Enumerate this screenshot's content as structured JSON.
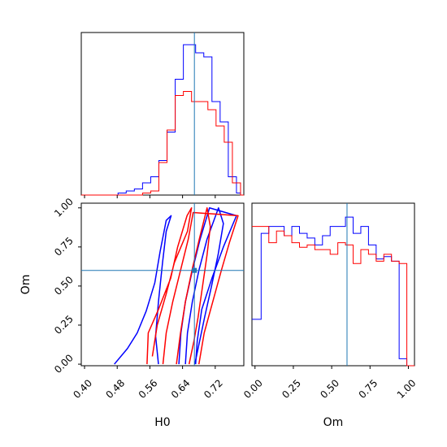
{
  "chart_data": {
    "type": "corner",
    "parameters": [
      "H0",
      "Om"
    ],
    "colors": {
      "run_blue": "#0000ff",
      "run_red": "#ff0000",
      "truth": "#1f77b4"
    },
    "truth": {
      "H0": 0.669,
      "Om": 0.6
    },
    "panels": [
      {
        "id": "hist_H0",
        "type": "step-histogram",
        "x_param": "H0",
        "xlim": [
          0.392,
          0.79
        ],
        "bins": [
          0.392,
          0.402,
          0.412,
          0.422,
          0.432,
          0.442,
          0.452,
          0.462,
          0.472,
          0.482,
          0.492,
          0.502,
          0.512,
          0.522,
          0.532,
          0.542,
          0.552,
          0.562,
          0.572,
          0.582,
          0.592,
          0.602,
          0.612,
          0.622,
          0.632,
          0.642,
          0.652,
          0.662,
          0.672,
          0.682,
          0.692,
          0.702,
          0.712,
          0.722,
          0.732,
          0.742,
          0.752,
          0.762,
          0.772,
          0.782,
          0.79
        ],
        "series": [
          {
            "color": "run_blue",
            "counts": [
              0,
              0,
              0,
              0,
              0,
              0,
              0,
              0,
              0,
              1,
              1,
              2,
              2,
              3,
              3,
              6,
              6,
              9,
              9,
              17,
              17,
              31,
              31,
              57,
              57,
              74,
              74,
              74,
              70,
              70,
              68,
              68,
              46,
              46,
              36,
              36,
              9,
              9,
              1,
              0
            ]
          },
          {
            "color": "run_red",
            "counts": [
              0,
              0,
              0,
              0,
              0,
              0,
              0,
              0,
              0,
              0,
              0,
              0,
              0,
              0,
              0,
              1,
              1,
              2,
              2,
              16,
              16,
              32,
              32,
              49,
              49,
              51,
              51,
              46,
              46,
              46,
              46,
              42,
              42,
              34,
              34,
              26,
              26,
              6,
              6,
              0
            ]
          }
        ],
        "ylim": [
          0,
          80
        ],
        "yticks_visible": false
      },
      {
        "id": "contour_H0_Om",
        "type": "contour",
        "x_param": "H0",
        "y_param": "Om",
        "xlim": [
          0.392,
          0.79
        ],
        "ylim": [
          -0.01,
          1.03
        ],
        "xticks": [
          "0.40",
          "0.48",
          "0.56",
          "0.64",
          "0.72"
        ],
        "yticks": [
          "0.00",
          "0.25",
          "0.50",
          "0.75",
          "1.00"
        ],
        "xlabel": "H0",
        "ylabel": "Om",
        "series": [
          {
            "color": "run_blue",
            "contours": [
              [
                [
                  0.581,
                  0.0
                ],
                [
                  0.574,
                  0.18
                ],
                [
                  0.581,
                  0.4
                ],
                [
                  0.591,
                  0.65
                ],
                [
                  0.6,
                  0.85
                ],
                [
                  0.612,
                  0.95
                ],
                [
                  0.6,
                  0.92
                ],
                [
                  0.585,
                  0.72
                ],
                [
                  0.572,
                  0.52
                ],
                [
                  0.551,
                  0.34
                ],
                [
                  0.529,
                  0.2
                ],
                [
                  0.505,
                  0.1
                ],
                [
                  0.473,
                  0.0
                ]
              ],
              [
                [
                  0.647,
                  0.0
                ],
                [
                  0.652,
                  0.2
                ],
                [
                  0.664,
                  0.4
                ],
                [
                  0.68,
                  0.6
                ],
                [
                  0.7,
                  0.8
                ],
                [
                  0.728,
                  1.0
                ],
                [
                  0.74,
                  0.9
                ],
                [
                  0.727,
                  0.7
                ],
                [
                  0.711,
                  0.5
                ],
                [
                  0.694,
                  0.3
                ],
                [
                  0.67,
                  0.0
                ]
              ],
              [
                [
                  0.631,
                  0.0
                ],
                [
                  0.636,
                  0.2
                ],
                [
                  0.647,
                  0.4
                ],
                [
                  0.664,
                  0.6
                ],
                [
                  0.683,
                  0.8
                ],
                [
                  0.706,
                  1.0
                ],
                [
                  0.772,
                  0.95
                ],
                [
                  0.74,
                  0.75
                ],
                [
                  0.712,
                  0.55
                ],
                [
                  0.687,
                  0.35
                ],
                [
                  0.676,
                  0.15
                ],
                [
                  0.672,
                  0.0
                ]
              ]
            ]
          },
          {
            "color": "run_red",
            "contours": [
              [
                [
                  0.625,
                  0.0
                ],
                [
                  0.635,
                  0.2
                ],
                [
                  0.647,
                  0.4
                ],
                [
                  0.663,
                  0.6
                ],
                [
                  0.681,
                  0.8
                ],
                [
                  0.7,
                  1.0
                ],
                [
                  0.708,
                  0.88
                ],
                [
                  0.7,
                  0.7
                ],
                [
                  0.689,
                  0.5
                ],
                [
                  0.678,
                  0.3
                ],
                [
                  0.668,
                  0.15
                ],
                [
                  0.656,
                  0.0
                ]
              ],
              [
                [
                  0.592,
                  0.0
                ],
                [
                  0.6,
                  0.2
                ],
                [
                  0.616,
                  0.4
                ],
                [
                  0.635,
                  0.6
                ],
                [
                  0.654,
                  0.8
                ],
                [
                  0.666,
                  0.97
                ],
                [
                  0.776,
                  0.95
                ],
                [
                  0.755,
                  0.78
                ],
                [
                  0.735,
                  0.6
                ],
                [
                  0.714,
                  0.4
                ],
                [
                  0.693,
                  0.2
                ],
                [
                  0.68,
                  0.0
                ]
              ],
              [
                [
                  0.553,
                  0.0
                ],
                [
                  0.556,
                  0.2
                ],
                [
                  0.581,
                  0.35
                ],
                [
                  0.611,
                  0.55
                ],
                [
                  0.628,
                  0.75
                ],
                [
                  0.651,
                  0.95
                ],
                [
                  0.662,
                  1.0
                ],
                [
                  0.652,
                  0.85
                ],
                [
                  0.62,
                  0.65
                ],
                [
                  0.6,
                  0.45
                ],
                [
                  0.578,
                  0.25
                ],
                [
                  0.566,
                  0.05
                ]
              ]
            ]
          }
        ],
        "truth_marker": true
      },
      {
        "id": "hist_Om",
        "type": "step-histogram",
        "x_param": "Om",
        "xlim": [
          -0.02,
          1.04
        ],
        "bins": [
          -0.02,
          0.04,
          0.09,
          0.14,
          0.19,
          0.24,
          0.29,
          0.34,
          0.39,
          0.44,
          0.49,
          0.54,
          0.59,
          0.64,
          0.69,
          0.74,
          0.79,
          0.84,
          0.89,
          0.94,
          0.99,
          1.04
        ],
        "series": [
          {
            "color": "run_blue",
            "counts": [
              20,
              57,
              60,
              60,
              56,
              60,
              57,
              55,
              52,
              56,
              60,
              60,
              64,
              57,
              60,
              52,
              46,
              47,
              45,
              3,
              0
            ]
          },
          {
            "color": "run_red",
            "counts": [
              60,
              60,
              53,
              58,
              56,
              53,
              51,
              52,
              50,
              50,
              48,
              53,
              52,
              44,
              50,
              48,
              45,
              48,
              45,
              44,
              0
            ]
          }
        ],
        "ylim": [
          0,
          70
        ],
        "xticks": [
          "0.00",
          "0.25",
          "0.50",
          "0.75",
          "1.00"
        ],
        "xlabel": "Om",
        "yticks_visible": false
      }
    ]
  }
}
